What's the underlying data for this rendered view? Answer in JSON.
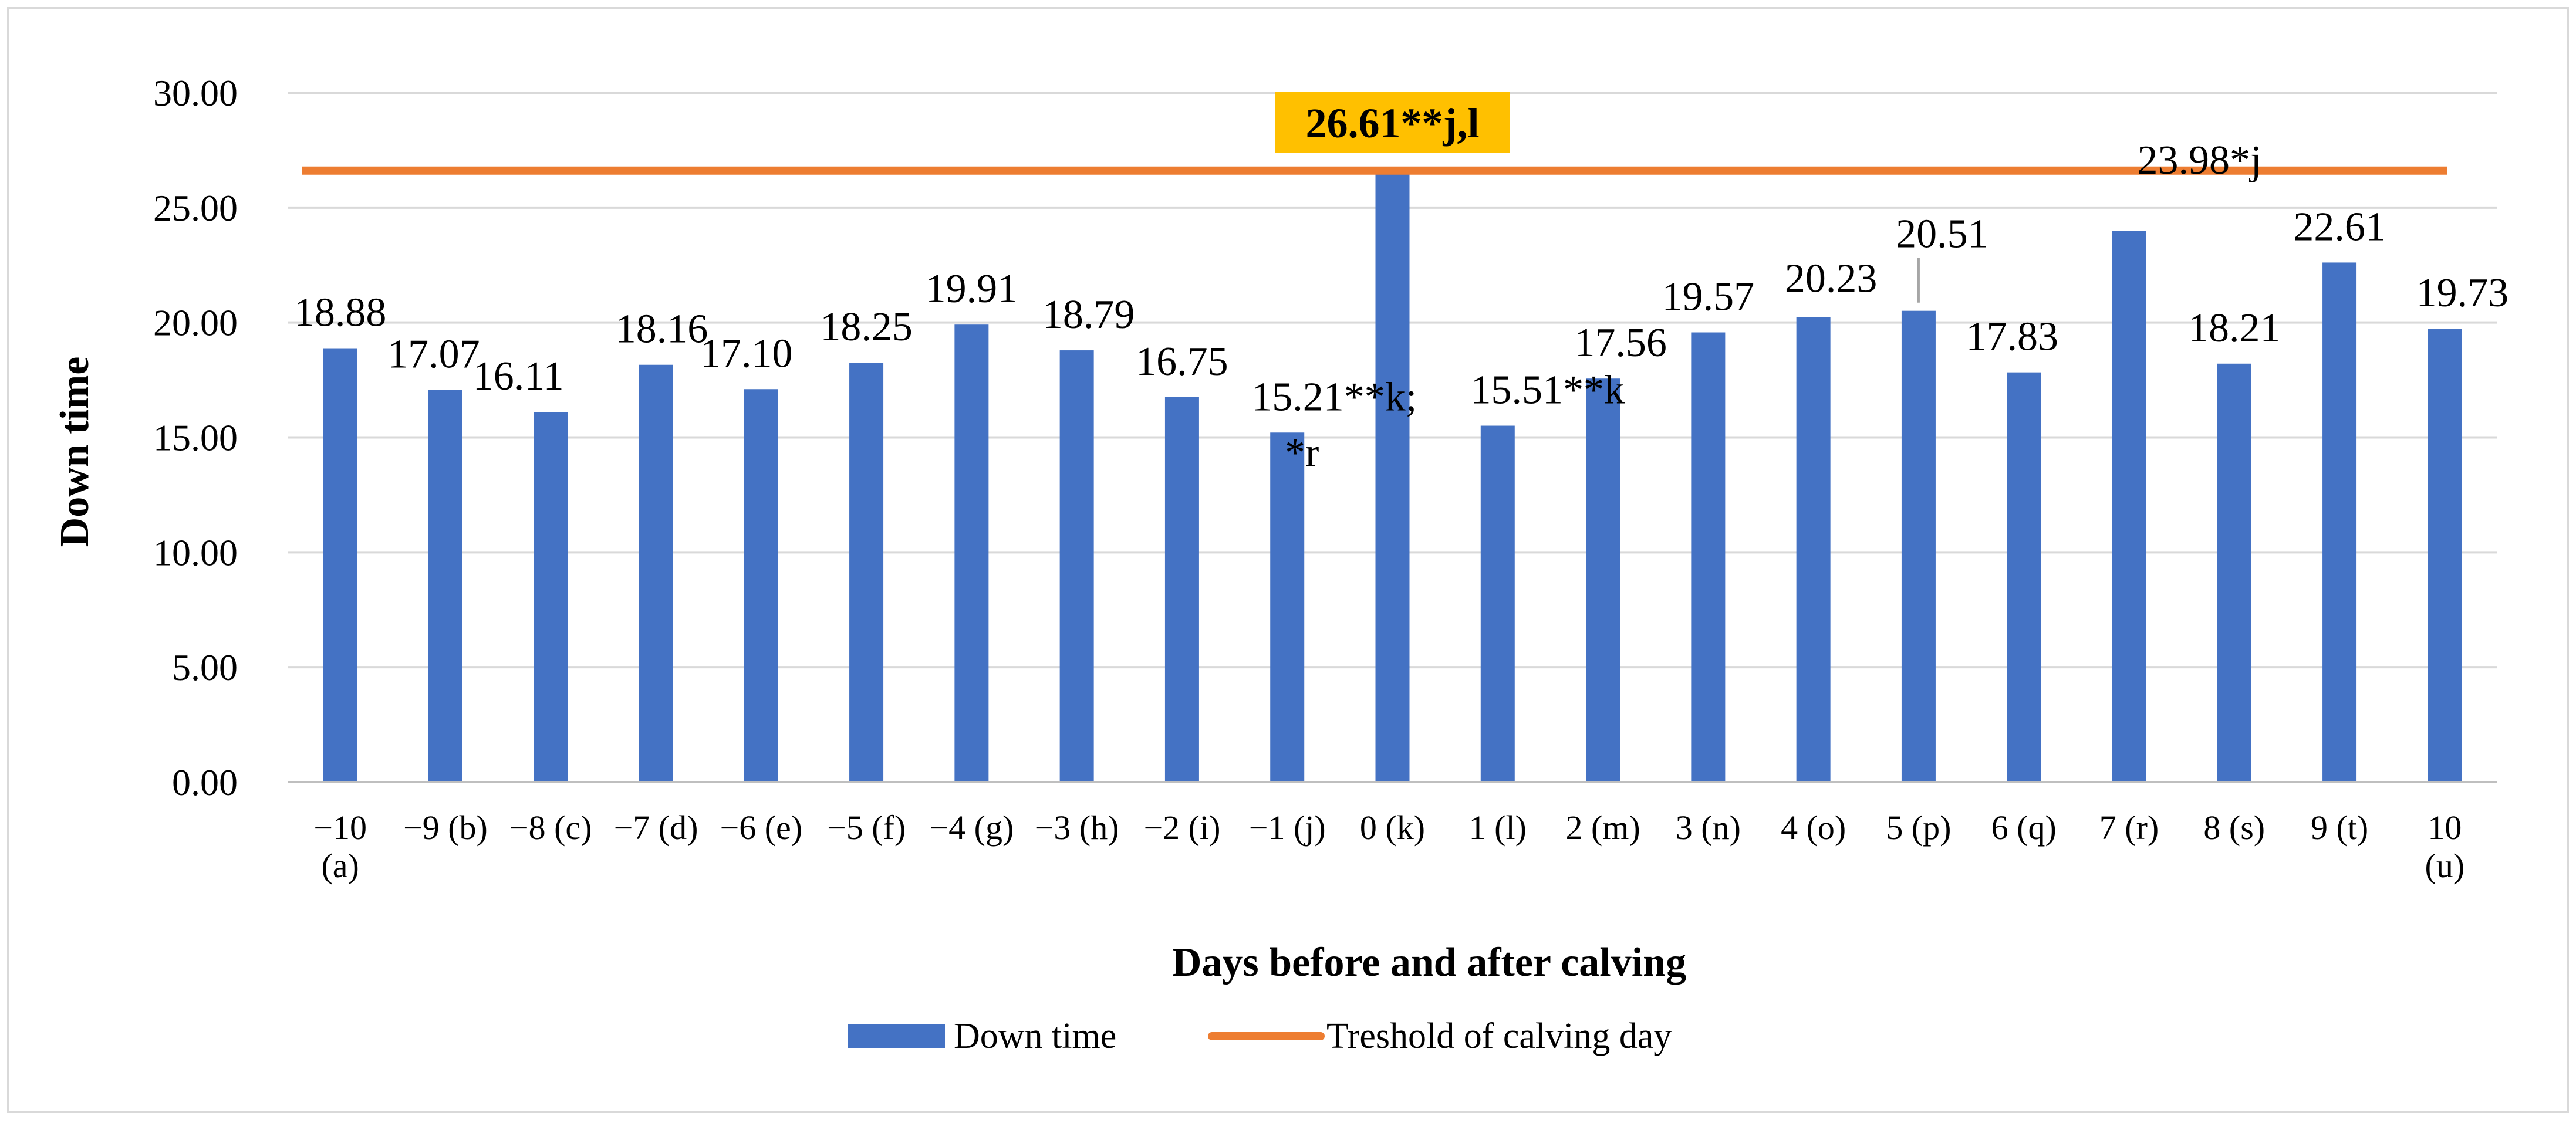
{
  "chart_data": {
    "type": "bar",
    "title": "",
    "xlabel": "Days before and after calving",
    "ylabel": "Down time",
    "ylim": [
      0,
      30
    ],
    "yticks": [
      "0.00",
      "5.00",
      "10.00",
      "15.00",
      "20.00",
      "25.00",
      "30.00"
    ],
    "grid": true,
    "legend_position": "bottom",
    "categories": [
      [
        "−10",
        "(a)"
      ],
      [
        "−9 (b)"
      ],
      [
        "−8 (c)"
      ],
      [
        "−7 (d)"
      ],
      [
        "−6 (e)"
      ],
      [
        "−5 (f)"
      ],
      [
        "−4 (g)"
      ],
      [
        "−3 (h)"
      ],
      [
        "−2 (i)"
      ],
      [
        "−1 (j)"
      ],
      [
        "0 (k)"
      ],
      [
        "1 (l)"
      ],
      [
        "2 (m)"
      ],
      [
        "3 (n)"
      ],
      [
        "4 (o)"
      ],
      [
        "5 (p)"
      ],
      [
        "6 (q)"
      ],
      [
        "7 (r)"
      ],
      [
        "8 (s)"
      ],
      [
        "9 (t)"
      ],
      [
        "10",
        "(u)"
      ]
    ],
    "series": [
      {
        "name": "Down time",
        "color": "#4472C4",
        "values": [
          18.88,
          17.07,
          16.11,
          18.16,
          17.1,
          18.25,
          19.91,
          18.79,
          16.75,
          15.21,
          26.61,
          15.51,
          17.56,
          19.57,
          20.23,
          20.51,
          17.83,
          23.98,
          18.21,
          22.61,
          19.73
        ],
        "labels": [
          "18.88",
          "17.07",
          "16.11",
          "18.16",
          "17.10",
          "18.25",
          "19.91",
          "18.79",
          "16.75",
          [
            "15.21**k;",
            "*r"
          ],
          "26.61**j,l",
          "15.51**k",
          "17.56",
          "19.57",
          "20.23",
          "20.51",
          "17.83",
          "23.98*j",
          "18.21",
          "22.61",
          "19.73"
        ]
      },
      {
        "name": "Treshold of calving day",
        "color": "#ED7D31",
        "value": 26.61
      }
    ],
    "callout": {
      "text": "26.61**j,l",
      "background": "#FFC000"
    }
  }
}
